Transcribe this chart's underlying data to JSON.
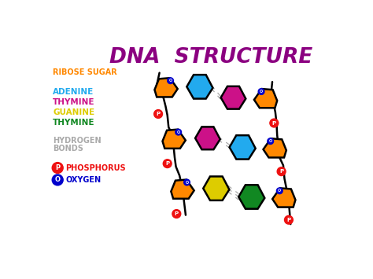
{
  "title": "DNA  STRUCTURE",
  "title_color": "#8B0080",
  "bg_color": "#FFFFFF",
  "phosphorus_color": "#EE1111",
  "oxygen_color": "#0000CC",
  "ribose_color": "#FF8800",
  "adenine_color": "#22AAEE",
  "thymine_color": "#CC1188",
  "guanine_color": "#DDCC00",
  "thymine2_color": "#118822",
  "hbond_color": "#AAAAAA",
  "label_ribose": "RIBOSE SUGAR",
  "label_adenine": "ADENINE",
  "label_thymine": "THYMINE",
  "label_guanine": "GUANINE",
  "label_thymine2": "THYMINE",
  "label_hydrogen": "HYDROGEN",
  "label_bonds": "BONDS",
  "label_phosphorus": "PHOSPHORUS",
  "label_oxygen": "OXYGEN"
}
